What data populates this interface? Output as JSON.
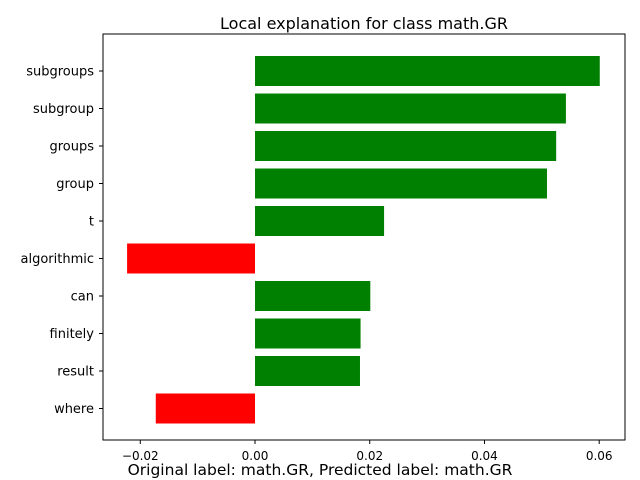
{
  "chart_data": {
    "type": "bar",
    "orientation": "horizontal",
    "title": "Local explanation for class math.GR",
    "caption": "Original label: math.GR, Predicted label: math.GR",
    "xlabel": "",
    "ylabel": "",
    "categories": [
      "subgroups",
      "subgroup",
      "groups",
      "group",
      "t",
      "algorithmic",
      "can",
      "finitely",
      "result",
      "where"
    ],
    "values": [
      0.0601,
      0.0542,
      0.0525,
      0.0509,
      0.0225,
      -0.0223,
      0.0201,
      0.0184,
      0.0183,
      -0.0173
    ],
    "xlim": [
      -0.0265,
      0.0645
    ],
    "xticks": [
      -0.02,
      0.0,
      0.02,
      0.04,
      0.06
    ],
    "xtick_labels": [
      "−0.02",
      "0.00",
      "0.02",
      "0.04",
      "0.06"
    ],
    "grid": false,
    "legend": "none",
    "colors": {
      "positive": "#008000",
      "negative": "#ff0000"
    }
  }
}
